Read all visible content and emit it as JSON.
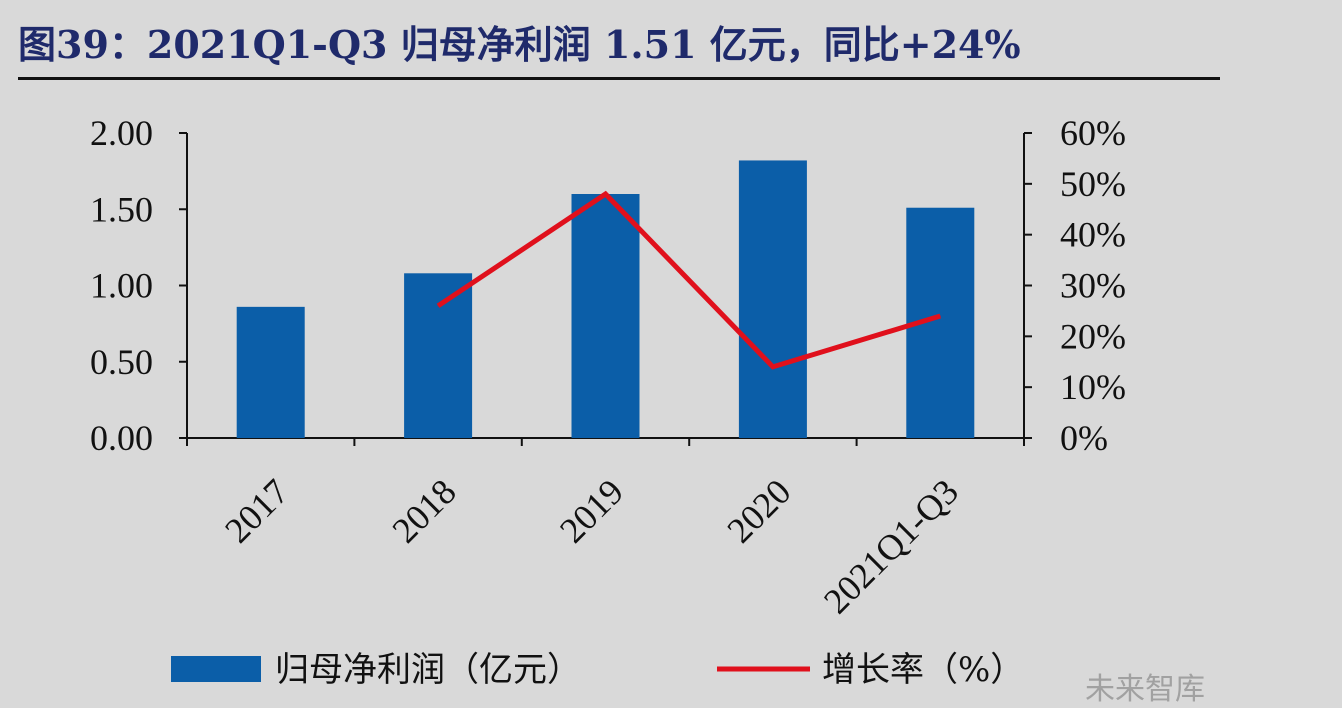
{
  "title": "图39：2021Q1-Q3 归母净利润 1.51 亿元，同比+24%",
  "watermark": "未来智库",
  "colors": {
    "bar": "#0b5ea8",
    "line": "#e0101c",
    "axis": "#111111"
  },
  "chart_data": {
    "type": "bar",
    "categories": [
      "2017",
      "2018",
      "2019",
      "2020",
      "2021Q1-Q3"
    ],
    "series": [
      {
        "name": "归母净利润（亿元）",
        "type": "bar",
        "axis": "left",
        "values": [
          0.86,
          1.08,
          1.6,
          1.82,
          1.51
        ]
      },
      {
        "name": "增长率（%）",
        "type": "line",
        "axis": "right",
        "values": [
          null,
          26,
          48,
          14,
          24
        ]
      }
    ],
    "y_left": {
      "ylim": [
        0,
        2
      ],
      "ticks": [
        "0.00",
        "0.50",
        "1.00",
        "1.50",
        "2.00"
      ]
    },
    "y_right": {
      "ylim": [
        0,
        60
      ],
      "ticks": [
        "0%",
        "10%",
        "20%",
        "30%",
        "40%",
        "50%",
        "60%"
      ]
    },
    "legend_placement": "bottom",
    "grid": false
  }
}
